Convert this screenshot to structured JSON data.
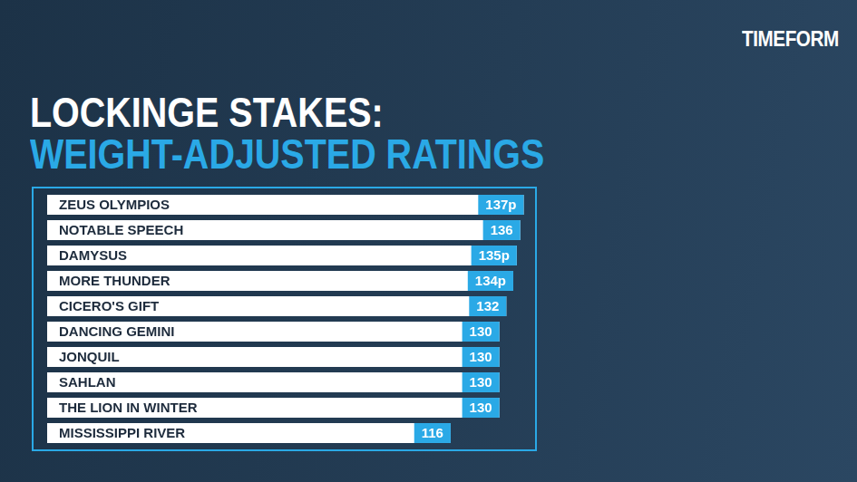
{
  "chart_data": {
    "type": "bar",
    "title": "LOCKINGE STAKES:",
    "subtitle": "WEIGHT-ADJUSTED RATINGS",
    "annotations": [
      "TIMEFORM"
    ],
    "orientation": "horizontal",
    "categories": [
      "ZEUS OLYMPIOS",
      "NOTABLE SPEECH",
      "DAMYSUS",
      "MORE THUNDER",
      "CICERO'S GIFT",
      "DANCING GEMINI",
      "JONQUIL",
      "SAHLAN",
      "THE LION IN WINTER",
      "MISSISSIPPI RIVER"
    ],
    "values": [
      137,
      136,
      135,
      134,
      132,
      130,
      130,
      130,
      130,
      116
    ],
    "value_labels": [
      "137p",
      "136",
      "135p",
      "134p",
      "132",
      "130",
      "130",
      "130",
      "130",
      "116"
    ],
    "color": "#ffffff",
    "xlim": [
      0,
      140
    ],
    "grid": false,
    "data_labels": true,
    "tick_labels": false
  }
}
